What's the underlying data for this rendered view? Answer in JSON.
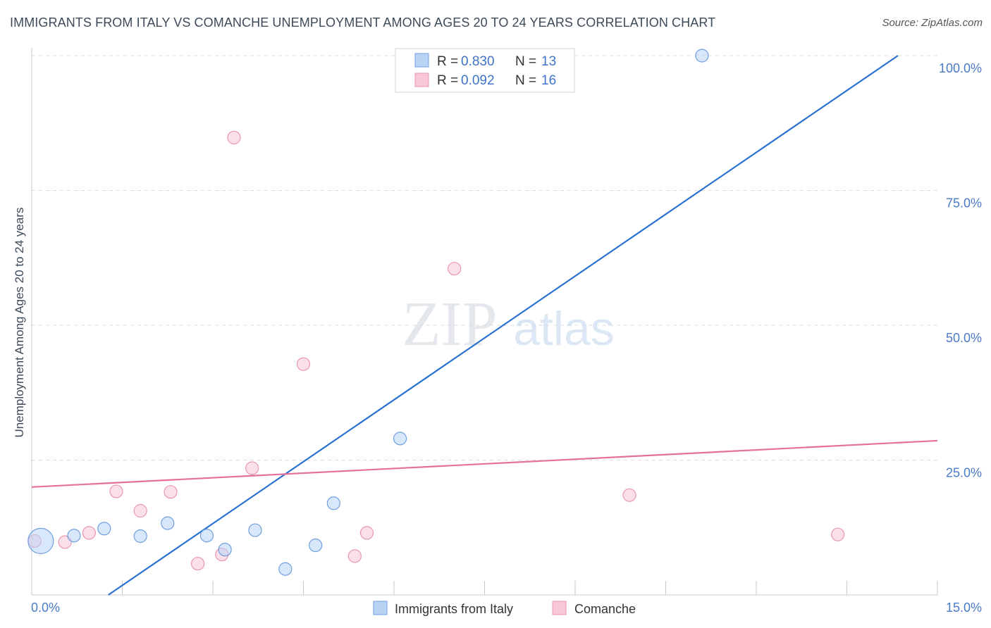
{
  "chart_data": {
    "type": "scatter",
    "title": "IMMIGRANTS FROM ITALY VS COMANCHE UNEMPLOYMENT AMONG AGES 20 TO 24 YEARS CORRELATION CHART",
    "source": "Source: ZipAtlas.com",
    "xlabel": "",
    "ylabel": "Unemployment Among Ages 20 to 24 years",
    "xlim": [
      0,
      15
    ],
    "ylim": [
      0,
      100
    ],
    "x_tick_labels": [
      "0.0%",
      "15.0%"
    ],
    "y_ticks": [
      25,
      50,
      75,
      100
    ],
    "y_tick_labels": [
      "25.0%",
      "50.0%",
      "75.0%",
      "100.0%"
    ],
    "watermark": {
      "zip": "ZIP",
      "atlas": "atlas"
    },
    "series": [
      {
        "name": "Immigrants from Italy",
        "color": "#6f9fe0",
        "fill": "#b9d3f5",
        "line_color": "#2b72d0",
        "R": "0.830",
        "N": "13",
        "points": [
          [
            0.15,
            10.0
          ],
          [
            0.7,
            11.0
          ],
          [
            1.2,
            12.3
          ],
          [
            1.8,
            10.9
          ],
          [
            2.25,
            13.3
          ],
          [
            2.9,
            11.0
          ],
          [
            3.2,
            8.4
          ],
          [
            3.7,
            12.0
          ],
          [
            4.2,
            4.8
          ],
          [
            4.7,
            9.2
          ],
          [
            5.0,
            17.0
          ],
          [
            6.1,
            29.0
          ],
          [
            11.1,
            100.0
          ]
        ],
        "sizes": [
          18,
          9,
          9,
          9,
          9,
          9,
          9,
          9,
          9,
          9,
          9,
          9,
          9
        ],
        "trend": [
          [
            -2.0,
            -25.0
          ],
          [
            15.0,
            105.0
          ]
        ]
      },
      {
        "name": "Comanche",
        "color": "#e996b2",
        "fill": "#f7c7d7",
        "line_color": "#e57099",
        "R": "0.092",
        "N": "16",
        "points": [
          [
            0.05,
            10.0
          ],
          [
            0.55,
            9.8
          ],
          [
            0.95,
            11.5
          ],
          [
            1.4,
            19.2
          ],
          [
            1.8,
            15.6
          ],
          [
            2.3,
            19.1
          ],
          [
            2.75,
            5.8
          ],
          [
            3.15,
            7.5
          ],
          [
            3.35,
            84.8
          ],
          [
            3.65,
            23.5
          ],
          [
            4.5,
            42.8
          ],
          [
            5.35,
            7.2
          ],
          [
            5.55,
            11.5
          ],
          [
            7.0,
            60.5
          ],
          [
            9.9,
            18.5
          ],
          [
            13.35,
            11.2
          ]
        ],
        "sizes": [
          9,
          9,
          9,
          9,
          9,
          9,
          9,
          9,
          9,
          9,
          9,
          9,
          9,
          9,
          9,
          9
        ],
        "trend": [
          [
            0.0,
            20.0
          ],
          [
            15.0,
            28.6
          ]
        ]
      }
    ],
    "legend": {
      "r_label": "R =",
      "n_label": "N ="
    }
  }
}
